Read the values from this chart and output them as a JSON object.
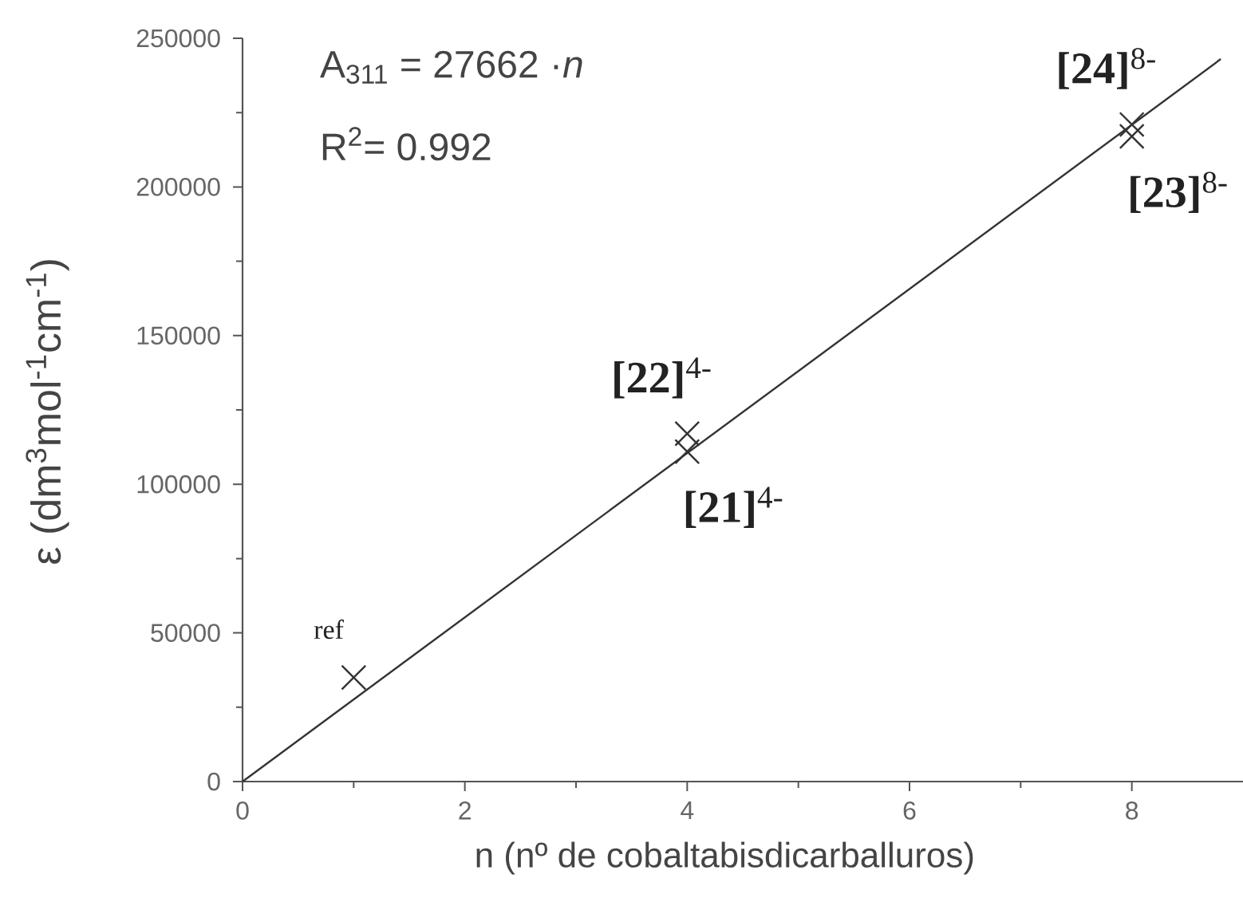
{
  "chart_data": {
    "type": "scatter",
    "xlabel": "n (nº de cobaltabisdicarballuros)",
    "ylabel": "ε (dm$^{3}$mol$^{-1}$cm$^{-1}$)",
    "annotations": [
      "A$_{311}$ = 27662 ·*n*",
      "R$^{2}$= 0.992",
      {
        "text": "ref",
        "x": 1,
        "y": 35000
      },
      {
        "text": "**[22]**$^{4-}$",
        "x": 4,
        "y": 117000
      },
      {
        "text": "**[21]**$^{4-}$",
        "x": 4,
        "y": 111000
      },
      {
        "text": "**[24]**$^{8-}$",
        "x": 8,
        "y": 221000
      },
      {
        "text": "**[23]**$^{8-}$",
        "x": 8,
        "y": 217000
      }
    ],
    "series": [
      {
        "x": [
          1,
          4,
          4,
          8,
          8
        ],
        "values": [
          35000,
          111000,
          117000,
          217000,
          221000
        ],
        "color": "#333333",
        "marker": "cross"
      },
      {
        "type": "line",
        "x": [
          0,
          8.8
        ],
        "values": [
          0,
          243000
        ],
        "color": "#333333",
        "marker": "none",
        "line_style": "solid"
      }
    ],
    "xlim": [
      0,
      9
    ],
    "ylim": [
      0,
      250000
    ],
    "xticks": [
      0,
      2,
      4,
      6,
      8
    ],
    "yticks": [
      0,
      50000,
      100000,
      150000,
      200000,
      250000
    ]
  }
}
